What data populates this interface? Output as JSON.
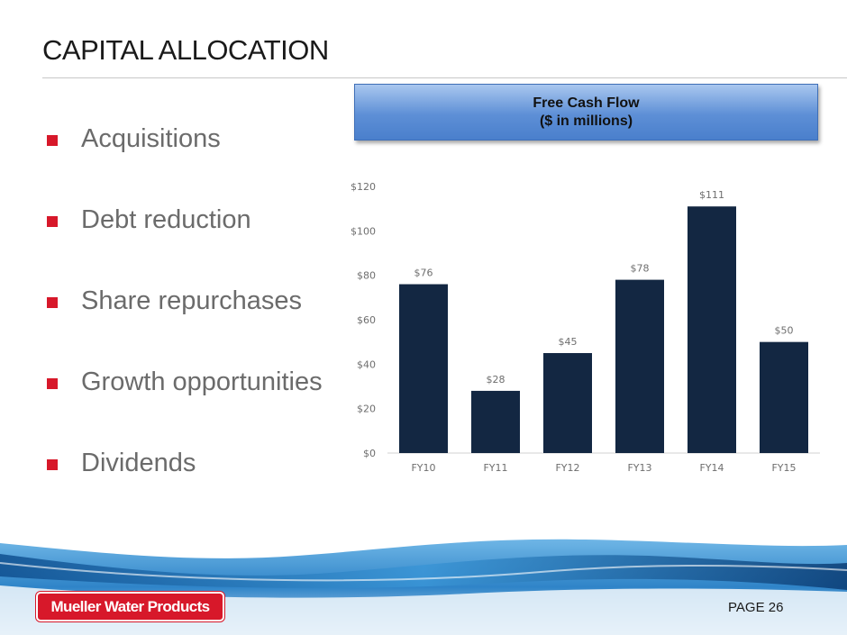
{
  "slide": {
    "title": "CAPITAL ALLOCATION",
    "page_label": "PAGE 26",
    "logo_text": "Mueller Water Products",
    "accent_color": "#d7182a"
  },
  "bullets": [
    "Acquisitions",
    "Debt reduction",
    "Share repurchases",
    "Growth opportunities",
    "Dividends"
  ],
  "chart_header": {
    "line1": "Free Cash Flow",
    "line2": "($ in millions)"
  },
  "chart_data": {
    "type": "bar",
    "title": "Free Cash Flow ($ in millions)",
    "categories": [
      "FY10",
      "FY11",
      "FY12",
      "FY13",
      "FY14",
      "FY15"
    ],
    "values": [
      76,
      28,
      45,
      78,
      111,
      50
    ],
    "value_labels": [
      "$76",
      "$28",
      "$45",
      "$78",
      "$111",
      "$50"
    ],
    "ylim": [
      0,
      120
    ],
    "yticks": [
      0,
      20,
      40,
      60,
      80,
      100,
      120
    ],
    "ytick_labels": [
      "$0",
      "$20",
      "$40",
      "$60",
      "$80",
      "$100",
      "$120"
    ],
    "bar_color": "#132742",
    "grid": false,
    "legend": "none"
  }
}
